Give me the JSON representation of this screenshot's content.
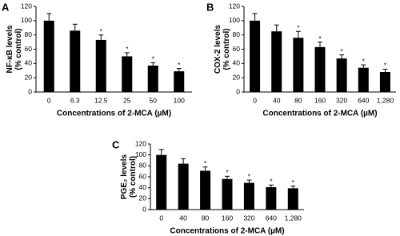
{
  "chart_data": [
    {
      "type": "bar",
      "panel": "A",
      "ylabel": [
        "NF-κB levels",
        "(% control)"
      ],
      "xlabel": "Concentrations of 2-MCA (µM)",
      "categories": [
        "0",
        "6.3",
        "12.5",
        "25",
        "50",
        "100"
      ],
      "values": [
        100,
        86,
        73,
        50,
        37,
        29
      ],
      "errors": [
        10,
        9,
        7,
        5,
        4,
        4
      ],
      "significance": [
        null,
        null,
        "*",
        "*",
        "*",
        "*"
      ],
      "color": "#000000",
      "ylim": [
        0,
        120
      ],
      "yticks": [
        0,
        20,
        40,
        60,
        80,
        100,
        120
      ]
    },
    {
      "type": "bar",
      "panel": "B",
      "ylabel": [
        "COX-2 levels",
        "(% control)"
      ],
      "xlabel": "Concentrations of 2-MCA (µM)",
      "categories": [
        "0",
        "40",
        "80",
        "160",
        "320",
        "640",
        "1,280"
      ],
      "values": [
        100,
        85,
        76,
        63,
        47,
        34,
        28
      ],
      "errors": [
        10,
        9,
        9,
        7,
        5,
        4,
        4
      ],
      "significance": [
        null,
        null,
        "*",
        "*",
        "*",
        "*",
        "*"
      ],
      "color": "#000000",
      "ylim": [
        0,
        120
      ],
      "yticks": [
        0,
        20,
        40,
        60,
        80,
        100,
        120
      ]
    },
    {
      "type": "bar",
      "panel": "C",
      "ylabel": [
        "PGE₂ levels",
        "(% control)"
      ],
      "xlabel": "Concentrations of 2-MCA (µM)",
      "categories": [
        "0",
        "40",
        "80",
        "160",
        "320",
        "640",
        "1,280"
      ],
      "values": [
        100,
        84,
        71,
        56,
        49,
        41,
        39
      ],
      "errors": [
        10,
        9,
        7,
        5,
        5,
        4,
        4
      ],
      "significance": [
        null,
        null,
        "*",
        "*",
        "*",
        "*",
        "*"
      ],
      "color": "#000000",
      "ylim": [
        0,
        120
      ],
      "yticks": [
        0,
        20,
        40,
        60,
        80,
        100,
        120
      ]
    }
  ]
}
